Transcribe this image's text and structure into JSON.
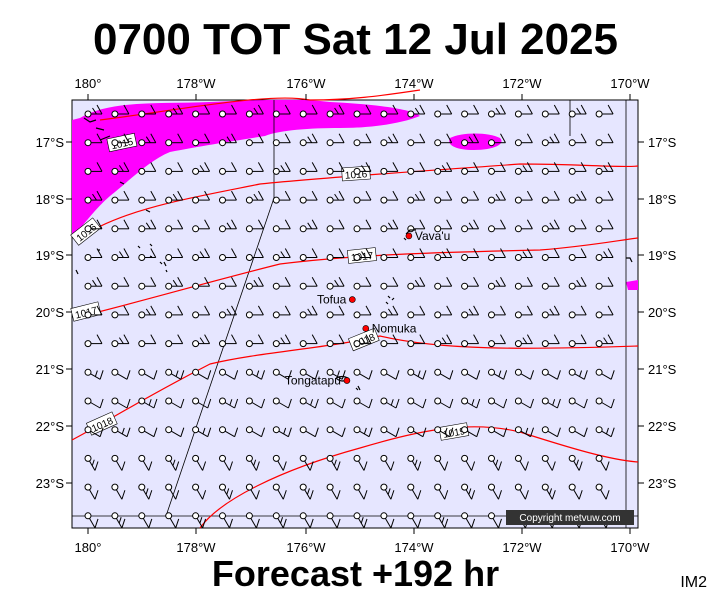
{
  "header": {
    "title": "0700 TOT Sat 12 Jul 2025"
  },
  "footer": {
    "forecast": "Forecast +192 hr",
    "image_id": "IM2",
    "copyright": "Copyright metvuw.com"
  },
  "map": {
    "lon_labels": [
      "180°",
      "178°W",
      "176°W",
      "174°W",
      "172°W",
      "170°W"
    ],
    "lat_labels": [
      "17°S",
      "18°S",
      "19°S",
      "20°S",
      "21°S",
      "22°S",
      "23°S"
    ],
    "lon_values": [
      180,
      -178,
      -176,
      -174,
      -172,
      -170
    ],
    "lat_values": [
      -17,
      -18,
      -19,
      -20,
      -21,
      -22,
      -23
    ],
    "extent": {
      "lon_min": -180.25,
      "lon_max": -169.75,
      "lat_top": -16.3,
      "lat_bottom": -23.7
    },
    "isobar_labels": [
      "1015",
      "1016",
      "1016",
      "1017",
      "1017",
      "1018",
      "1018",
      "1019"
    ],
    "places": [
      {
        "name": "Vava'u",
        "lon": -174.0,
        "lat": -18.65
      },
      {
        "name": "Tofua",
        "lon": -175.05,
        "lat": -19.75
      },
      {
        "name": "Nomuka",
        "lon": -174.8,
        "lat": -20.25
      },
      {
        "name": "Tongatapu",
        "lon": -175.15,
        "lat": -21.15
      }
    ],
    "colors": {
      "ocean": "#e6e6ff",
      "isobar": "#ff0000",
      "rain": "#ff00ff",
      "wind": "#000000"
    }
  }
}
